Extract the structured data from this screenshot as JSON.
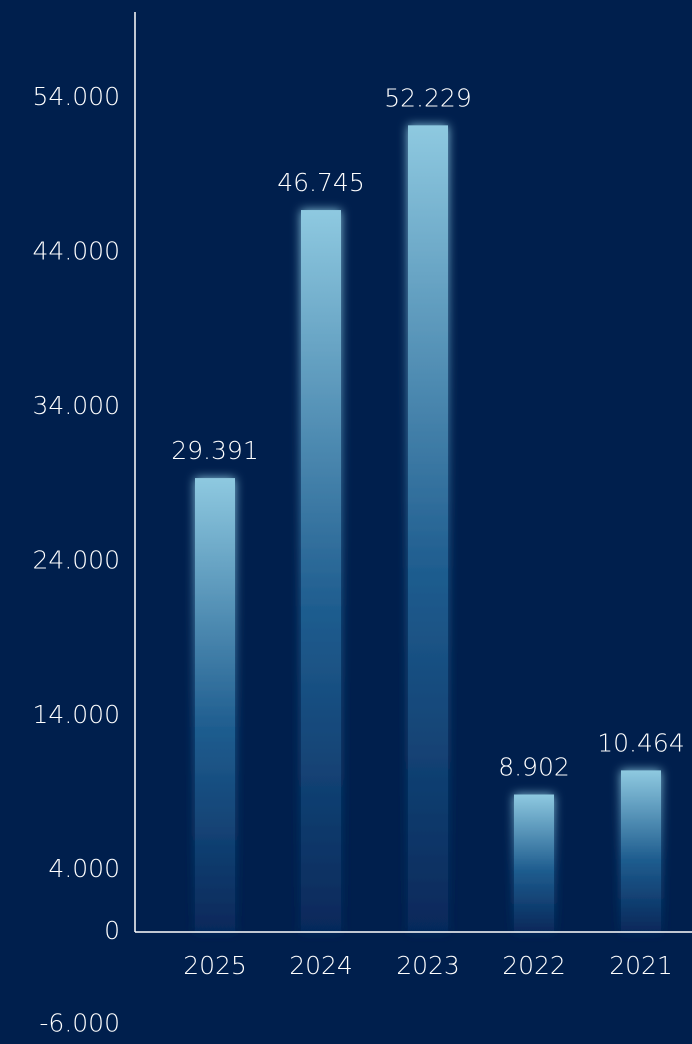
{
  "chart_data": {
    "type": "bar",
    "categories": [
      "2025",
      "2024",
      "2023",
      "2022",
      "2021"
    ],
    "values": [
      29391,
      46745,
      52229,
      8902,
      10464
    ],
    "value_labels": [
      "29.391",
      "46.745",
      "52.229",
      "8.902",
      "10.464"
    ],
    "y_ticks": [
      {
        "value": 54000,
        "label": "54.000"
      },
      {
        "value": 44000,
        "label": "44.000"
      },
      {
        "value": 34000,
        "label": "34.000"
      },
      {
        "value": 24000,
        "label": "24.000"
      },
      {
        "value": 14000,
        "label": "14.000"
      },
      {
        "value": 4000,
        "label": "4.000"
      },
      {
        "value": 0,
        "label": "0"
      },
      {
        "value": -6000,
        "label": "-6.000"
      }
    ],
    "ylim": [
      -6000,
      59000
    ],
    "grid": false,
    "legend": "none",
    "colors": {
      "background": "#001f4d",
      "bar_top": "#8ec9e0",
      "bar_bottom": "#06285a",
      "axis": "#ffffff",
      "text": "#ffffff"
    }
  }
}
